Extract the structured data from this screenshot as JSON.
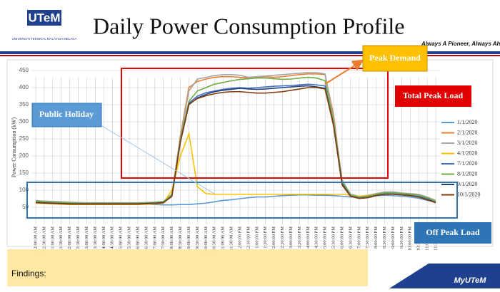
{
  "header": {
    "logo": "UTeM",
    "university": "UNIVERSITI TEKNIKAL MALAYSIA MELAKA",
    "title": "Daily Power Consumption Profile",
    "slogan": "Always A Pioneer, Always Ahead"
  },
  "annotations": {
    "peak_demand": "Peak Demand",
    "total_peak_load": "Total Peak Load",
    "public_holiday": "Public Holiday",
    "off_peak_load": "Off Peak Load"
  },
  "findings": "Findings:",
  "footer": "MyUTeM",
  "chart_data": {
    "type": "line",
    "y_label": "Power Consumption (kW)",
    "ylim": [
      0,
      450
    ],
    "yticks": [
      50,
      100,
      150,
      200,
      250,
      300,
      350,
      400,
      450
    ],
    "grid": true,
    "legend": "right",
    "categories": [
      "12:00:00 AM",
      "12:30:00 AM",
      "1:00:00 AM",
      "1:30:00 AM",
      "2:00:00 AM",
      "2:30:00 AM",
      "3:00:00 AM",
      "3:30:00 AM",
      "4:00:00 AM",
      "4:30:00 AM",
      "5:00:00 AM",
      "5:30:00 AM",
      "6:00:00 AM",
      "6:30:00 AM",
      "7:00:00 AM",
      "7:30:00 AM",
      "8:00:00 AM",
      "8:30:00 AM",
      "9:00:00 AM",
      "9:30:00 AM",
      "10:00:00 AM",
      "10:30:00 AM",
      "11:00:00 AM",
      "11:30:00 AM",
      "12:00:00 PM",
      "12:30:00 PM",
      "1:00:00 PM",
      "1:30:00 PM",
      "2:00:00 PM",
      "2:30:00 PM",
      "3:00:00 PM",
      "3:30:00 PM",
      "4:00:00 PM",
      "4:30:00 PM",
      "5:00:00 PM",
      "5:30:00 PM",
      "6:00:00 PM",
      "6:30:00 PM",
      "7:00:00 PM",
      "7:30:00 PM",
      "8:00:00 PM",
      "8:30:00 PM",
      "9:00:00 PM",
      "9:30:00 PM",
      "10:00:00 PM",
      "10:30:00 PM",
      "11:00:00 PM",
      "11:30:00 PM"
    ],
    "series": [
      {
        "name": "1/1/2020",
        "color": "#5b9bd5",
        "values": [
          68,
          67,
          66,
          65,
          64,
          63,
          62,
          62,
          62,
          62,
          62,
          62,
          62,
          60,
          58,
          57,
          57,
          58,
          58,
          60,
          62,
          66,
          70,
          72,
          75,
          78,
          80,
          80,
          82,
          84,
          85,
          86,
          86,
          85,
          85,
          84,
          82,
          80,
          80,
          82,
          84,
          85,
          84,
          82,
          80,
          76,
          70,
          65
        ]
      },
      {
        "name": "2/1/2020",
        "color": "#ed7d31",
        "values": [
          65,
          64,
          63,
          62,
          61,
          60,
          60,
          60,
          60,
          60,
          60,
          60,
          60,
          61,
          62,
          64,
          85,
          260,
          400,
          418,
          425,
          430,
          432,
          432,
          430,
          428,
          430,
          432,
          430,
          432,
          435,
          438,
          440,
          440,
          438,
          320,
          125,
          85,
          80,
          82,
          88,
          92,
          92,
          90,
          88,
          85,
          78,
          68
        ]
      },
      {
        "name": "3/1/2020",
        "color": "#a5a5a5",
        "values": [
          70,
          68,
          67,
          66,
          65,
          64,
          63,
          63,
          63,
          63,
          63,
          63,
          63,
          64,
          65,
          67,
          88,
          255,
          390,
          425,
          430,
          435,
          438,
          438,
          436,
          430,
          432,
          434,
          436,
          438,
          440,
          442,
          444,
          444,
          440,
          310,
          130,
          88,
          82,
          85,
          90,
          95,
          95,
          92,
          90,
          88,
          80,
          70
        ]
      },
      {
        "name": "4/1/2020",
        "color": "#ffc000",
        "values": [
          62,
          61,
          60,
          59,
          58,
          58,
          58,
          58,
          58,
          58,
          58,
          58,
          58,
          59,
          60,
          62,
          100,
          200,
          265,
          110,
          90,
          88,
          88,
          88,
          88,
          88,
          88,
          88,
          88,
          88,
          88,
          88,
          88,
          88,
          88,
          88,
          88,
          85,
          82,
          84,
          88,
          90,
          90,
          88,
          86,
          84,
          76,
          66
        ]
      },
      {
        "name": "7/1/2020",
        "color": "#4472c4",
        "values": [
          66,
          65,
          64,
          63,
          62,
          61,
          61,
          61,
          61,
          61,
          61,
          61,
          61,
          62,
          63,
          65,
          84,
          245,
          355,
          375,
          385,
          390,
          395,
          398,
          400,
          398,
          400,
          402,
          404,
          405,
          406,
          408,
          410,
          408,
          405,
          295,
          120,
          84,
          78,
          80,
          86,
          90,
          90,
          88,
          86,
          82,
          75,
          66
        ]
      },
      {
        "name": "8/1/2020",
        "color": "#70ad47",
        "values": [
          67,
          66,
          65,
          64,
          63,
          62,
          62,
          62,
          62,
          62,
          62,
          62,
          62,
          63,
          64,
          66,
          86,
          250,
          360,
          390,
          400,
          410,
          415,
          420,
          424,
          426,
          428,
          428,
          426,
          424,
          425,
          428,
          430,
          428,
          420,
          300,
          125,
          86,
          80,
          82,
          88,
          92,
          92,
          90,
          88,
          85,
          78,
          68
        ]
      },
      {
        "name": "9/1/2020",
        "color": "#264478",
        "values": [
          64,
          63,
          62,
          61,
          60,
          60,
          60,
          60,
          60,
          60,
          60,
          60,
          60,
          61,
          62,
          64,
          82,
          240,
          350,
          370,
          380,
          388,
          392,
          395,
          398,
          396,
          395,
          396,
          398,
          400,
          402,
          404,
          405,
          402,
          398,
          290,
          118,
          82,
          76,
          78,
          84,
          88,
          88,
          86,
          84,
          80,
          72,
          64
        ]
      },
      {
        "name": "10/1/2020",
        "color": "#843c0c",
        "values": [
          63,
          62,
          61,
          60,
          59,
          59,
          59,
          59,
          59,
          59,
          59,
          59,
          59,
          60,
          61,
          63,
          82,
          242,
          352,
          368,
          376,
          382,
          386,
          388,
          388,
          386,
          384,
          384,
          386,
          388,
          392,
          396,
          400,
          400,
          396,
          288,
          115,
          82,
          76,
          78,
          84,
          88,
          88,
          86,
          84,
          80,
          72,
          63
        ]
      }
    ]
  }
}
